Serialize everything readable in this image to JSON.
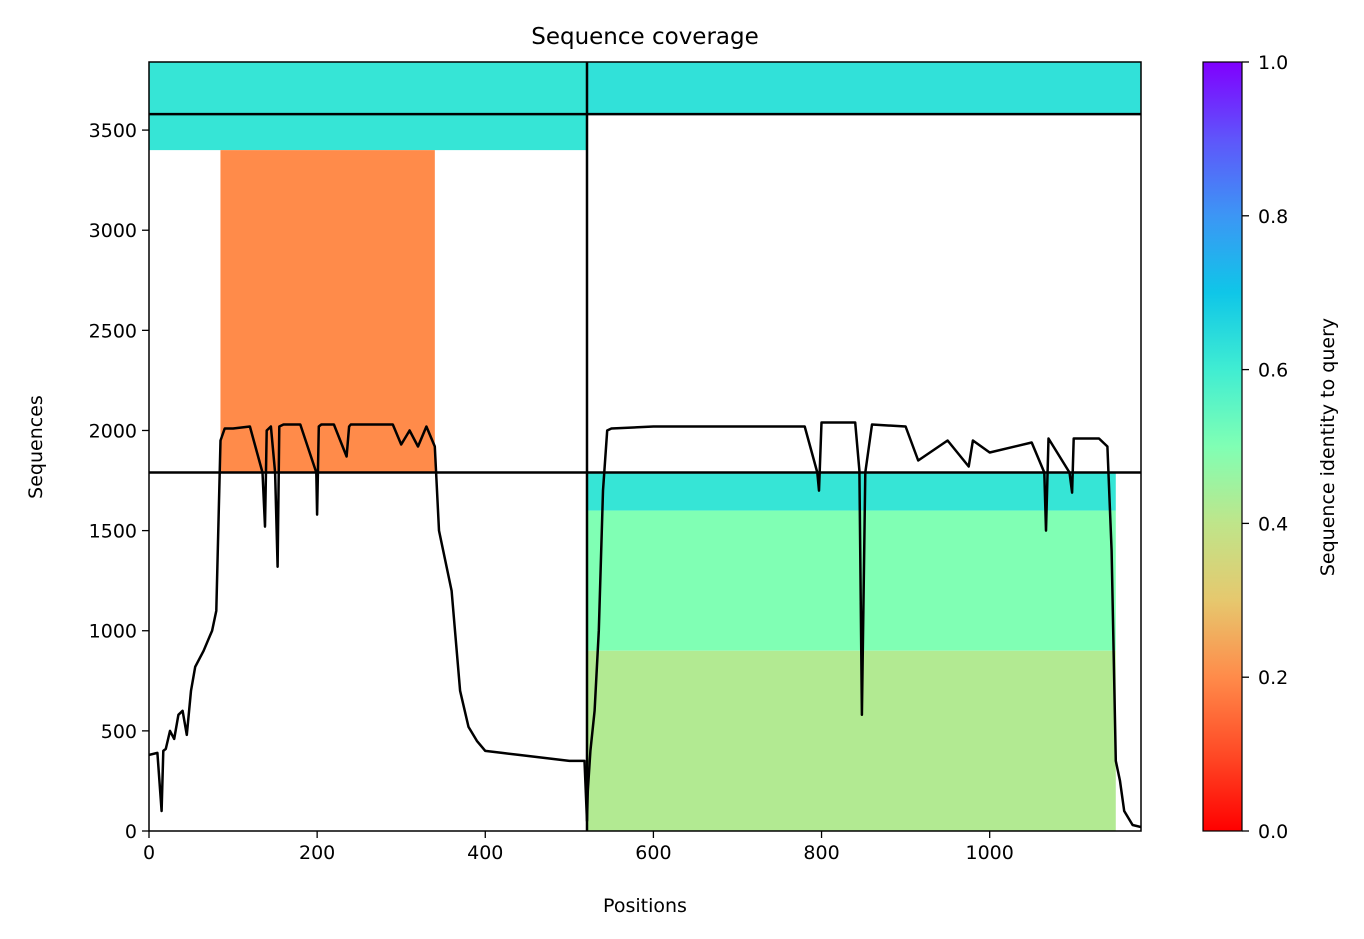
{
  "chart_data": {
    "type": "heatmap",
    "title": "Sequence coverage",
    "xlabel": "Positions",
    "ylabel": "Sequences",
    "xlim": [
      0,
      1180
    ],
    "ylim": [
      0,
      3840
    ],
    "xticks": [
      0,
      200,
      400,
      600,
      800,
      1000
    ],
    "yticks": [
      0,
      500,
      1000,
      1500,
      2000,
      2500,
      3000,
      3500
    ],
    "grid": false,
    "colormap": "rainbow_r",
    "colorbar": {
      "label": "Sequence identity to query",
      "range": [
        0,
        1
      ],
      "ticks": [
        0.0,
        0.2,
        0.4,
        0.6,
        0.8,
        1.0
      ],
      "tick_labels": [
        "0.0",
        "0.2",
        "0.4",
        "0.6",
        "0.8",
        "1.0"
      ]
    },
    "divider_lines": {
      "vertical_x": 521,
      "horizontal_y": [
        1790,
        3580
      ]
    },
    "blocks": [
      {
        "region": "top-left",
        "x": [
          0,
          521
        ],
        "y": [
          3400,
          3580
        ],
        "identity": 0.62
      },
      {
        "region": "top-left",
        "x": [
          0,
          521
        ],
        "y": [
          3580,
          3840
        ],
        "identity": 0.62
      },
      {
        "region": "top-right",
        "x": [
          521,
          1180
        ],
        "y": [
          3580,
          3840
        ],
        "identity": 0.63
      },
      {
        "region": "middle-left",
        "x": [
          85,
          340
        ],
        "y": [
          1790,
          3400
        ],
        "identity": 0.2
      },
      {
        "region": "bottom-right",
        "x": [
          521,
          1150
        ],
        "y": [
          1600,
          1790
        ],
        "identity": 0.62
      },
      {
        "region": "bottom-right",
        "x": [
          521,
          1150
        ],
        "y": [
          900,
          1600
        ],
        "identity": 0.5
      },
      {
        "region": "bottom-right",
        "x": [
          521,
          1150
        ],
        "y": [
          0,
          900
        ],
        "identity": 0.42
      }
    ],
    "series": [
      {
        "type": "line",
        "color": "#000000",
        "x": [
          0,
          10,
          15,
          17,
          20,
          25,
          30,
          35,
          40,
          45,
          50,
          55,
          60,
          65,
          70,
          75,
          80,
          85,
          90,
          100,
          120,
          135,
          138,
          140,
          145,
          150,
          153,
          155,
          160,
          180,
          199,
          200,
          202,
          205,
          220,
          235,
          238,
          240,
          260,
          290,
          300,
          310,
          320,
          330,
          340,
          345,
          350,
          360,
          370,
          380,
          390,
          400,
          420,
          440,
          460,
          480,
          500,
          518,
          521,
          522,
          525,
          530,
          535,
          540,
          545,
          550,
          600,
          700,
          780,
          795,
          797,
          800,
          840,
          845,
          848,
          852,
          860,
          900,
          915,
          950,
          975,
          980,
          1000,
          1050,
          1065,
          1067,
          1070,
          1095,
          1098,
          1100,
          1130,
          1140,
          1145,
          1150,
          1155,
          1160,
          1170,
          1180
        ],
        "y": [
          380,
          390,
          100,
          400,
          410,
          500,
          460,
          580,
          600,
          480,
          700,
          820,
          860,
          900,
          950,
          1000,
          1100,
          1950,
          2010,
          2010,
          2020,
          1790,
          1520,
          2000,
          2020,
          1790,
          1320,
          2020,
          2030,
          2030,
          1790,
          1580,
          2020,
          2030,
          2030,
          1870,
          2020,
          2030,
          2030,
          2030,
          1930,
          2000,
          1920,
          2020,
          1920,
          1500,
          1400,
          1200,
          700,
          520,
          450,
          400,
          390,
          380,
          370,
          360,
          350,
          350,
          50,
          200,
          400,
          600,
          1000,
          1700,
          2000,
          2010,
          2020,
          2020,
          2020,
          1790,
          1700,
          2040,
          2040,
          1800,
          580,
          1790,
          2030,
          2020,
          1850,
          1950,
          1820,
          1950,
          1890,
          1940,
          1790,
          1500,
          1960,
          1790,
          1690,
          1960,
          1960,
          1920,
          1400,
          350,
          250,
          100,
          30,
          20
        ]
      }
    ]
  }
}
